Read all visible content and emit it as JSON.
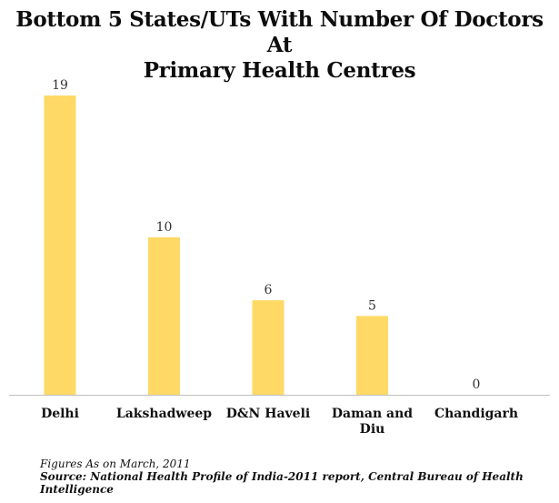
{
  "title_lines": [
    "Bottom 5 States/UTs With Number Of Doctors At",
    "Primary Health Centres"
  ],
  "footnote": "Figures As on March, 2011",
  "source": "Source: National Health Profile of India-2011 report, Central Bureau of Health Intelligence",
  "colors": {
    "bar": "#FFD966",
    "axis": "#bfbfbf",
    "text": "#111111"
  },
  "chart_data": {
    "type": "bar",
    "title": "Bottom 5 States/UTs With Number Of Doctors At Primary Health Centres",
    "categories": [
      [
        "Delhi"
      ],
      [
        "Lakshadweep"
      ],
      [
        "D&N Haveli"
      ],
      [
        "Daman and",
        "Diu"
      ],
      [
        "Chandigarh"
      ]
    ],
    "values": [
      19,
      10,
      6,
      5,
      0
    ],
    "xlabel": "",
    "ylabel": "",
    "ylim": [
      0,
      19
    ],
    "grid": false,
    "legend": "none",
    "data_labels": true
  }
}
